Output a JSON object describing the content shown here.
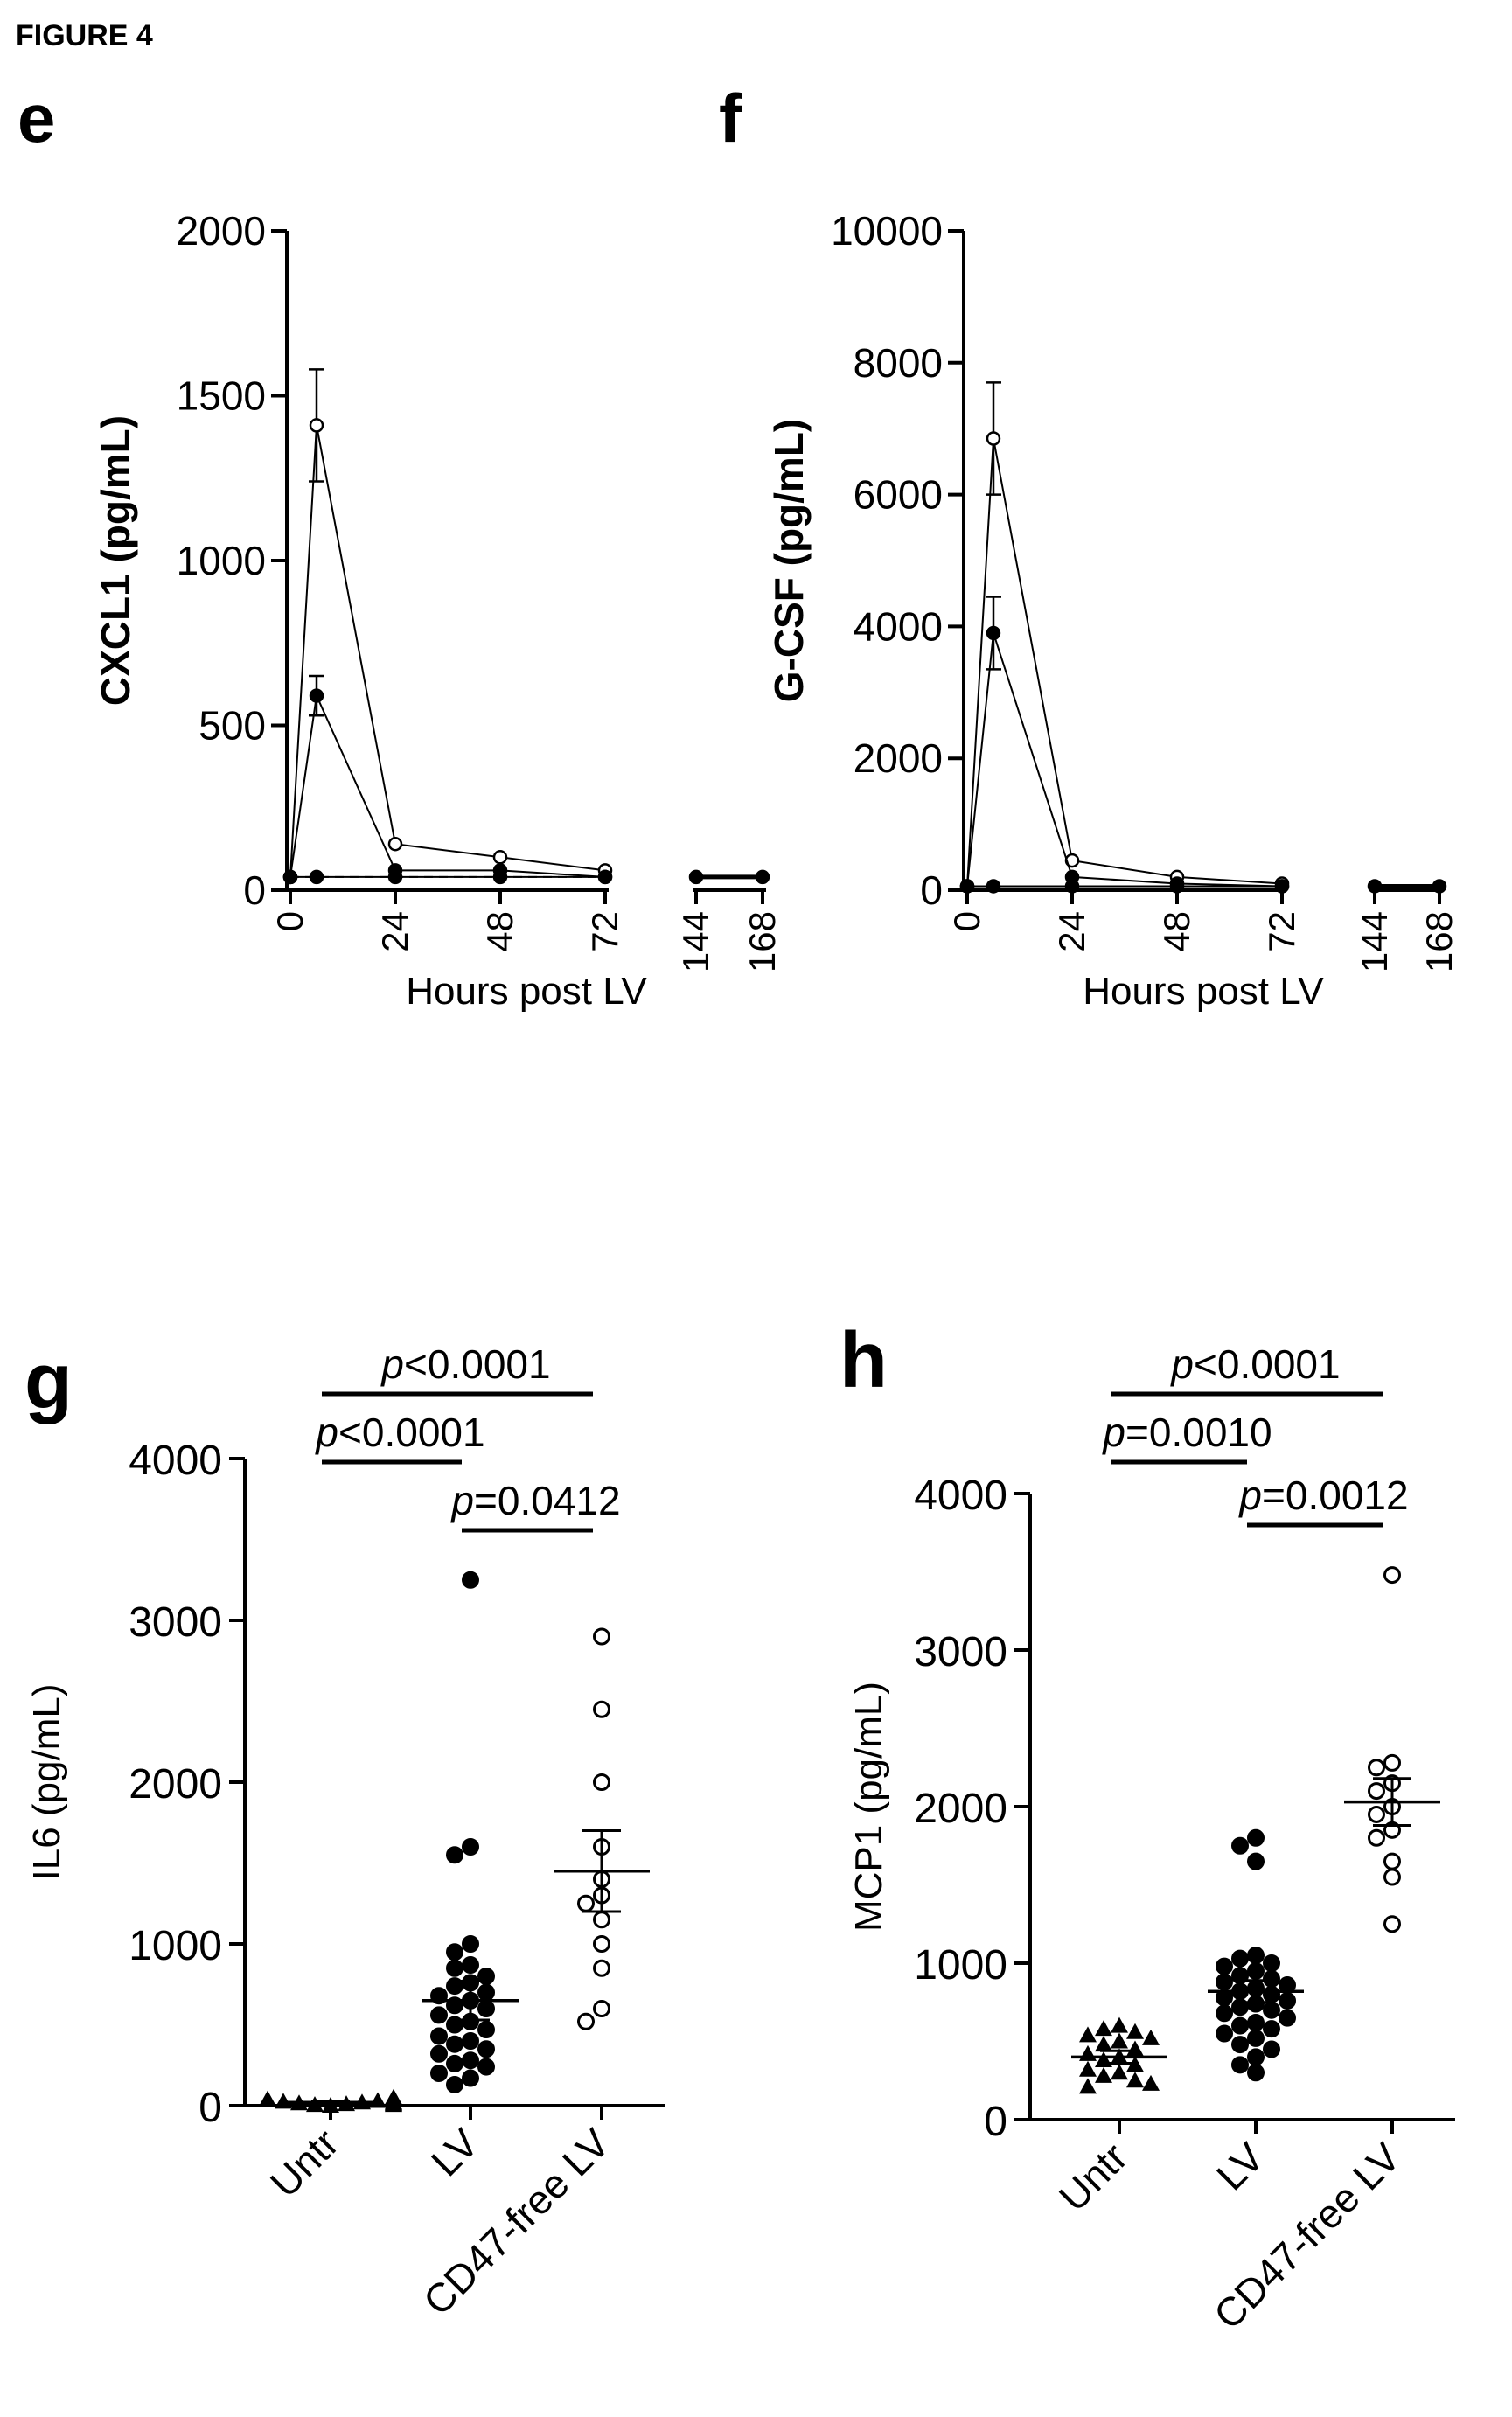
{
  "figure_label": "FIGURE 4",
  "chart_data": [
    {
      "panel": "e",
      "type": "line",
      "ylabel": "CXCL1 (pg/mL)",
      "xlabel": "Hours post LV",
      "ylim": [
        0,
        2000
      ],
      "yticks": [
        "0",
        "500",
        "1000",
        "1500",
        "2000"
      ],
      "xticks": [
        "0",
        "24",
        "48",
        "72",
        "144",
        "168"
      ],
      "axis_break": "between 72 and 144 h",
      "series": [
        {
          "marker": "open",
          "x": [
            0,
            6,
            24,
            48,
            72
          ],
          "y": [
            40,
            1410,
            140,
            100,
            60
          ],
          "err": [
            0,
            170,
            0,
            0,
            0
          ]
        },
        {
          "marker": "filled",
          "x": [
            0,
            6,
            24,
            48,
            72
          ],
          "y": [
            40,
            590,
            60,
            60,
            40
          ],
          "err": [
            0,
            60,
            0,
            0,
            0
          ]
        },
        {
          "marker": "filled",
          "x": [
            0,
            6,
            24,
            48,
            72
          ],
          "y": [
            40,
            40,
            40,
            40,
            40
          ],
          "err": [
            0,
            0,
            0,
            0,
            0
          ]
        },
        {
          "marker": "dashed",
          "x": [
            0,
            24,
            48,
            72
          ],
          "y": [
            40,
            40,
            40,
            40
          ],
          "err": [
            0,
            0,
            0,
            0
          ]
        },
        {
          "marker": "filled",
          "x": [
            144,
            168
          ],
          "y": [
            40,
            40
          ],
          "err": [
            0,
            0
          ]
        }
      ]
    },
    {
      "panel": "f",
      "type": "line",
      "ylabel": "G-CSF (pg/mL)",
      "xlabel": "Hours post LV",
      "ylim": [
        0,
        10000
      ],
      "yticks": [
        "0",
        "2000",
        "4000",
        "6000",
        "8000",
        "10000"
      ],
      "xticks": [
        "0",
        "24",
        "48",
        "72",
        "144",
        "168"
      ],
      "axis_break": "between 72 and 144 h",
      "series": [
        {
          "marker": "open",
          "x": [
            0,
            6,
            24,
            48,
            72
          ],
          "y": [
            60,
            6850,
            450,
            200,
            100
          ],
          "err": [
            0,
            850,
            0,
            0,
            0
          ]
        },
        {
          "marker": "filled",
          "x": [
            0,
            6,
            24,
            48,
            72
          ],
          "y": [
            60,
            3900,
            200,
            100,
            60
          ],
          "err": [
            0,
            550,
            0,
            0,
            0
          ]
        },
        {
          "marker": "filled",
          "x": [
            0,
            6,
            24,
            48,
            72
          ],
          "y": [
            60,
            60,
            60,
            60,
            60
          ],
          "err": [
            0,
            0,
            0,
            0,
            0
          ]
        },
        {
          "marker": "dashed",
          "x": [
            0,
            24,
            48,
            72
          ],
          "y": [
            60,
            60,
            60,
            60
          ],
          "err": [
            0,
            0,
            0,
            0
          ]
        },
        {
          "marker": "filled",
          "x": [
            144,
            168
          ],
          "y": [
            60,
            60
          ],
          "err": [
            0,
            0
          ]
        }
      ]
    },
    {
      "panel": "g",
      "type": "scatter",
      "ylabel": "IL6 (pg/mL)",
      "ylim": [
        0,
        4000
      ],
      "yticks": [
        "0",
        "1000",
        "2000",
        "3000",
        "4000"
      ],
      "categories": [
        "Untr",
        "LV",
        "CD47-free LV"
      ],
      "groups": [
        {
          "category": "Untr",
          "marker": "filled-triangle",
          "mean": 20,
          "sem": 8,
          "values": [
            0,
            5,
            10,
            15,
            20,
            25,
            30,
            40,
            50,
            10,
            20,
            5,
            15,
            35
          ]
        },
        {
          "category": "LV",
          "marker": "filled-circle",
          "mean": 650,
          "sem": 120,
          "values": [
            3250,
            1600,
            1550,
            1000,
            950,
            870,
            850,
            800,
            760,
            740,
            700,
            680,
            650,
            620,
            600,
            560,
            520,
            500,
            470,
            430,
            400,
            380,
            350,
            320,
            280,
            260,
            240,
            200,
            170,
            130
          ]
        },
        {
          "category": "CD47-free LV",
          "marker": "open-circle",
          "mean": 1450,
          "sem": 250,
          "values": [
            2900,
            2450,
            2000,
            1600,
            1400,
            1300,
            1250,
            1150,
            1000,
            850,
            600,
            520
          ]
        }
      ],
      "comparisons": [
        {
          "label": "p<0.0001",
          "from": "Untr",
          "to": "CD47-free LV"
        },
        {
          "label": "p<0.0001",
          "from": "Untr",
          "to": "LV"
        },
        {
          "label": "p=0.0412",
          "from": "LV",
          "to": "CD47-free LV"
        }
      ]
    },
    {
      "panel": "h",
      "type": "scatter",
      "ylabel": "MCP1 (pg/mL)",
      "ylim": [
        0,
        4000
      ],
      "yticks": [
        "0",
        "1000",
        "2000",
        "3000",
        "4000"
      ],
      "categories": [
        "Untr",
        "LV",
        "CD47-free LV"
      ],
      "groups": [
        {
          "category": "Untr",
          "marker": "filled-triangle",
          "mean": 400,
          "sem": 40,
          "values": [
            600,
            580,
            560,
            540,
            520,
            500,
            480,
            450,
            420,
            400,
            380,
            350,
            320,
            300,
            280,
            250,
            230,
            210
          ]
        },
        {
          "category": "LV",
          "marker": "filled-circle",
          "mean": 820,
          "sem": 70,
          "values": [
            1800,
            1750,
            1650,
            1050,
            1030,
            1000,
            980,
            950,
            920,
            900,
            880,
            860,
            840,
            820,
            800,
            780,
            760,
            740,
            720,
            700,
            680,
            650,
            620,
            600,
            580,
            550,
            520,
            480,
            450,
            400,
            350,
            300
          ]
        },
        {
          "category": "CD47-free LV",
          "marker": "open-circle",
          "mean": 2030,
          "sem": 150,
          "values": [
            3480,
            2280,
            2250,
            2150,
            2100,
            2000,
            1950,
            1850,
            1800,
            1650,
            1550,
            1250
          ]
        }
      ],
      "comparisons": [
        {
          "label": "p<0.0001",
          "from": "Untr",
          "to": "CD47-free LV"
        },
        {
          "label": "p=0.0010",
          "from": "Untr",
          "to": "LV"
        },
        {
          "label": "p=0.0012",
          "from": "LV",
          "to": "CD47-free LV"
        }
      ]
    }
  ]
}
